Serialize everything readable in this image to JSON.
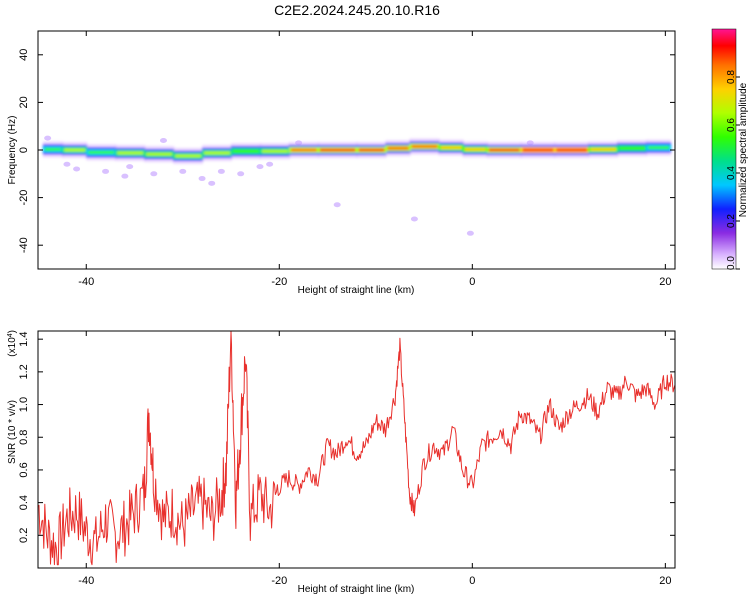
{
  "title": "C2E2.2024.245.20.10.R16",
  "chart_data": [
    {
      "type": "heatmap",
      "xlabel": "Height of straight line (km)",
      "ylabel": "Frequency (Hz)",
      "xlim": [
        -45,
        21
      ],
      "ylim": [
        -50,
        50
      ],
      "xticks": [
        -40,
        -20,
        0,
        20
      ],
      "yticks": [
        -40,
        -20,
        0,
        20,
        40
      ],
      "colorbar": {
        "label": "Normalized spectral amplitude",
        "range": [
          0,
          1
        ],
        "ticks": [
          "0.0",
          "0.2",
          "0.4",
          "0.6",
          "0.8"
        ],
        "colors": [
          "#ffffff",
          "#d9b3ff",
          "#8a2be2",
          "#1020ff",
          "#00c8ff",
          "#00e08a",
          "#30ff00",
          "#b0ff00",
          "#ffd000",
          "#ff7000",
          "#ff0000",
          "#ff1493"
        ]
      },
      "band": [
        {
          "x": -44.5,
          "f": 0.0,
          "amp": 0.35
        },
        {
          "x": -42.5,
          "f": 0.5,
          "amp": 0.7
        },
        {
          "x": -40.0,
          "f": -0.5,
          "amp": 0.5
        },
        {
          "x": -37.0,
          "f": -1.5,
          "amp": 0.55
        },
        {
          "x": -34.0,
          "f": -1.0,
          "amp": 0.75
        },
        {
          "x": -31.0,
          "f": -2.5,
          "amp": 0.5
        },
        {
          "x": -28.0,
          "f": -2.5,
          "amp": 0.7
        },
        {
          "x": -25.0,
          "f": 0.0,
          "amp": 0.6
        },
        {
          "x": -22.0,
          "f": -1.0,
          "amp": 0.55
        },
        {
          "x": -19.0,
          "f": 0.0,
          "amp": 0.75
        },
        {
          "x": -16.0,
          "f": 0.0,
          "amp": 0.85
        },
        {
          "x": -12.0,
          "f": 0.0,
          "amp": 0.9
        },
        {
          "x": -9.0,
          "f": 0.0,
          "amp": 0.9
        },
        {
          "x": -6.5,
          "f": 1.5,
          "amp": 0.8
        },
        {
          "x": -3.5,
          "f": 1.5,
          "amp": 0.8
        },
        {
          "x": -1.0,
          "f": 0.5,
          "amp": 0.6
        },
        {
          "x": 1.5,
          "f": 0.0,
          "amp": 0.85
        },
        {
          "x": 5.0,
          "f": 0.0,
          "amp": 0.9
        },
        {
          "x": 8.5,
          "f": 0.0,
          "amp": 0.95
        },
        {
          "x": 12.0,
          "f": 0.0,
          "amp": 0.9
        },
        {
          "x": 15.0,
          "f": 0.5,
          "amp": 0.6
        },
        {
          "x": 18.0,
          "f": 1.0,
          "amp": 0.55
        },
        {
          "x": 20.5,
          "f": 1.0,
          "amp": 0.5
        }
      ],
      "noise": [
        {
          "x": -44.0,
          "f": 5.0
        },
        {
          "x": -42.0,
          "f": -6.0
        },
        {
          "x": -41.0,
          "f": -8.0
        },
        {
          "x": -38.0,
          "f": -9.0
        },
        {
          "x": -36.0,
          "f": -11.0
        },
        {
          "x": -35.5,
          "f": -7.0
        },
        {
          "x": -33.0,
          "f": -10.0
        },
        {
          "x": -30.0,
          "f": -9.0
        },
        {
          "x": -28.0,
          "f": -12.0
        },
        {
          "x": -27.0,
          "f": -14.0
        },
        {
          "x": -26.0,
          "f": -9.0
        },
        {
          "x": -24.0,
          "f": -10.0
        },
        {
          "x": -22.0,
          "f": -7.0
        },
        {
          "x": -21.0,
          "f": -6.0
        },
        {
          "x": -14.0,
          "f": -23.0
        },
        {
          "x": -6.0,
          "f": -29.0
        },
        {
          "x": -0.2,
          "f": -35.0
        },
        {
          "x": -32.0,
          "f": 4.0
        },
        {
          "x": -18.0,
          "f": 3.0
        },
        {
          "x": 6.0,
          "f": 3.0
        }
      ]
    },
    {
      "type": "line",
      "xlabel": "Height of straight line (km)",
      "ylabel": "SNR (10 * v/v)",
      "yscale_label": "(x10",
      "yscale_exponent": "4",
      "yscale_close": ")",
      "xlim": [
        -45,
        21
      ],
      "ylim": [
        0,
        1.45
      ],
      "xticks": [
        -40,
        -20,
        0,
        20
      ],
      "yticks": [
        "0.2",
        "0.4",
        "0.6",
        "0.8",
        "1.0",
        "1.2",
        "1.4"
      ],
      "color": "#e8302c",
      "x": [
        -45,
        -44,
        -43,
        -42,
        -41,
        -40,
        -39,
        -38,
        -37,
        -36,
        -35,
        -34,
        -33.5,
        -33,
        -32,
        -31,
        -30,
        -29,
        -28,
        -27,
        -26,
        -25.5,
        -25,
        -24.5,
        -24,
        -23.5,
        -23,
        -22,
        -21,
        -20,
        -19,
        -18,
        -17,
        -16,
        -15,
        -14,
        -13,
        -12,
        -11,
        -10,
        -9,
        -8,
        -7.5,
        -7,
        -6.5,
        -6,
        -5,
        -4,
        -3,
        -2,
        -1,
        0,
        1,
        2,
        3,
        4,
        5,
        6,
        7,
        8,
        9,
        10,
        11,
        12,
        13,
        14,
        15,
        16,
        17,
        18,
        19,
        20,
        21
      ],
      "y": [
        0.38,
        0.2,
        0.12,
        0.3,
        0.35,
        0.22,
        0.15,
        0.3,
        0.2,
        0.25,
        0.35,
        0.45,
        0.95,
        0.55,
        0.3,
        0.35,
        0.25,
        0.35,
        0.4,
        0.3,
        0.45,
        0.6,
        1.45,
        0.4,
        0.85,
        1.3,
        0.3,
        0.45,
        0.35,
        0.5,
        0.55,
        0.5,
        0.6,
        0.55,
        0.75,
        0.7,
        0.8,
        0.7,
        0.75,
        0.9,
        0.85,
        1.05,
        1.35,
        0.9,
        0.45,
        0.35,
        0.65,
        0.75,
        0.7,
        0.85,
        0.6,
        0.5,
        0.75,
        0.8,
        0.85,
        0.75,
        0.95,
        0.9,
        0.8,
        1.0,
        0.85,
        0.95,
        1.0,
        1.05,
        0.95,
        1.1,
        1.05,
        1.15,
        1.05,
        1.1,
        1.0,
        1.15,
        1.12
      ]
    }
  ]
}
